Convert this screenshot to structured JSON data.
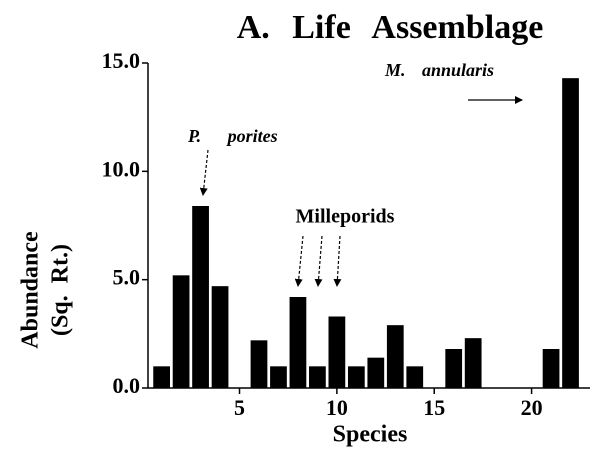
{
  "chart_data": {
    "type": "bar",
    "title": "A. Life Assemblage",
    "xlabel": "Species",
    "ylabel": [
      "Abundance",
      "(Sq. Rt.)"
    ],
    "annotations": [
      "P. porites",
      "Milleporids",
      "M. annularis"
    ],
    "x": [
      1,
      2,
      3,
      4,
      6,
      7,
      8,
      9,
      10,
      11,
      12,
      13,
      14,
      16,
      17,
      21,
      22
    ],
    "values": [
      1.0,
      5.2,
      8.4,
      4.7,
      2.2,
      1.0,
      4.2,
      1.0,
      3.3,
      1.0,
      1.4,
      2.9,
      1.0,
      1.8,
      2.3,
      1.8,
      14.3
    ],
    "color": "#000000",
    "xlim": [
      0.3,
      23
    ],
    "xticks": [
      5,
      10,
      15,
      20
    ],
    "ylim": [
      0,
      15
    ],
    "yticks": [
      {
        "value": 0,
        "label": "0.0"
      },
      {
        "value": 5,
        "label": "5.0"
      },
      {
        "value": 10,
        "label": "10.0"
      },
      {
        "value": 15,
        "label": "15.0"
      }
    ],
    "grid": false
  }
}
